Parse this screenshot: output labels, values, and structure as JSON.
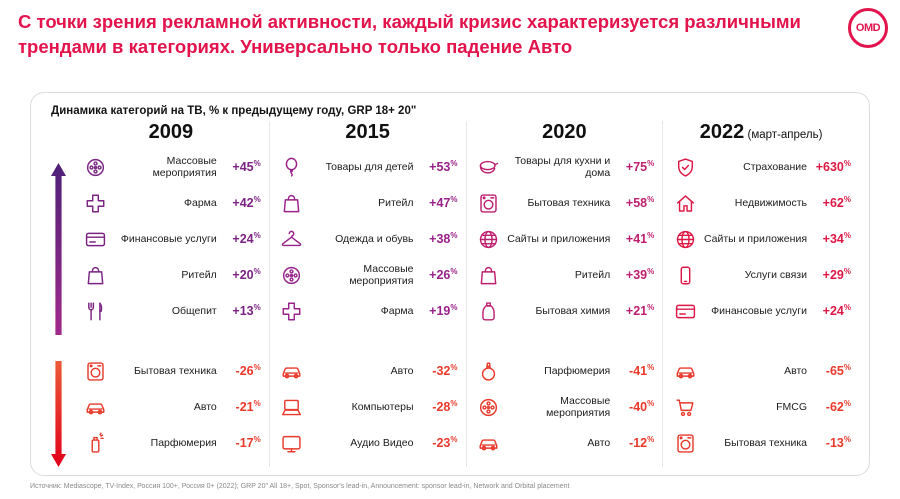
{
  "title": "С точки зрения рекламной активности, каждый кризис характеризуется различными трендами в категориях. Универсально только падение Авто",
  "logo": {
    "text": "OMD"
  },
  "colors": {
    "title": "#E3134B",
    "negative": "#E8392B",
    "up_arrow_top": "#4E2178",
    "up_arrow_bottom": "#A02A8C",
    "down_arrow_top": "#EA5A38",
    "down_arrow_bottom": "#E2001A"
  },
  "card": {
    "header": "Динамика категорий на ТВ, % к предыдущему году, GRP 18+ 20\"",
    "columns": [
      {
        "year": "2009",
        "year_suffix": "",
        "accent": "#7A2383",
        "gainers": [
          {
            "icon": "film-reel",
            "label": "Массовые мероприятия",
            "value": "+45%"
          },
          {
            "icon": "pharma-cross",
            "label": "Фарма",
            "value": "+42%"
          },
          {
            "icon": "credit-card",
            "label": "Финансовые услуги",
            "value": "+24%"
          },
          {
            "icon": "shopping-bag",
            "label": "Ритейл",
            "value": "+20%"
          },
          {
            "icon": "cutlery",
            "label": "Общепит",
            "value": "+13%"
          }
        ],
        "losers": [
          {
            "icon": "washing-machine",
            "label": "Бытовая техника",
            "value": "-26%"
          },
          {
            "icon": "car",
            "label": "Авто",
            "value": "-21%"
          },
          {
            "icon": "spray-can",
            "label": "Парфюмерия",
            "value": "-17%"
          }
        ]
      },
      {
        "year": "2015",
        "year_suffix": "",
        "accent": "#99218A",
        "gainers": [
          {
            "icon": "balloon",
            "label": "Товары для детей",
            "value": "+53%"
          },
          {
            "icon": "shopping-bag",
            "label": "Ритейл",
            "value": "+47%"
          },
          {
            "icon": "hanger",
            "label": "Одежда и обувь",
            "value": "+38%"
          },
          {
            "icon": "film-reel",
            "label": "Массовые мероприятия",
            "value": "+26%"
          },
          {
            "icon": "pharma-cross",
            "label": "Фарма",
            "value": "+19%"
          }
        ],
        "losers": [
          {
            "icon": "car",
            "label": "Авто",
            "value": "-32%"
          },
          {
            "icon": "laptop",
            "label": "Компьютеры",
            "value": "-28%"
          },
          {
            "icon": "tv",
            "label": "Аудио Видео",
            "value": "-23%"
          }
        ]
      },
      {
        "year": "2020",
        "year_suffix": "",
        "accent": "#BE1E6F",
        "gainers": [
          {
            "icon": "cookware",
            "label": "Товары для кухни и дома",
            "value": "+75%"
          },
          {
            "icon": "washing-machine",
            "label": "Бытовая техника",
            "value": "+58%"
          },
          {
            "icon": "globe",
            "label": "Сайты и приложения",
            "value": "+41%"
          },
          {
            "icon": "shopping-bag",
            "label": "Ритейл",
            "value": "+39%"
          },
          {
            "icon": "detergent",
            "label": "Бытовая химия",
            "value": "+21%"
          }
        ],
        "losers": [
          {
            "icon": "perfume",
            "label": "Парфюмерия",
            "value": "-41%"
          },
          {
            "icon": "film-reel",
            "label": "Массовые мероприятия",
            "value": "-40%"
          },
          {
            "icon": "car",
            "label": "Авто",
            "value": "-12%"
          }
        ]
      },
      {
        "year": "2022",
        "year_suffix": "(март-апрель)",
        "accent": "#DE1845",
        "gainers": [
          {
            "icon": "shield-check",
            "label": "Страхование",
            "value": "+630%"
          },
          {
            "icon": "house",
            "label": "Недвижимость",
            "value": "+62%"
          },
          {
            "icon": "globe",
            "label": "Сайты и приложения",
            "value": "+34%"
          },
          {
            "icon": "mobile-phone",
            "label": "Услуги связи",
            "value": "+29%"
          },
          {
            "icon": "credit-card",
            "label": "Финансовые услуги",
            "value": "+24%"
          }
        ],
        "losers": [
          {
            "icon": "car",
            "label": "Авто",
            "value": "-65%"
          },
          {
            "icon": "shopping-cart",
            "label": "FMCG",
            "value": "-62%"
          },
          {
            "icon": "washing-machine",
            "label": "Бытовая техника",
            "value": "-13%"
          }
        ]
      }
    ]
  },
  "source": "Источник: Mediascope, TV-Index, Россия 100+, Россия 0+ (2022); GRP 20\" All 18+, Spot, Sponsor's lead-in, Announcement: sponsor lead-in, Network and Orbital placement",
  "chart_data": {
    "type": "table",
    "title": "Динамика категорий на ТВ, % к предыдущему году, GRP 18+ 20\"",
    "unit": "% к предыдущему году",
    "groups": [
      {
        "year": "2009",
        "rising": [
          [
            "Массовые мероприятия",
            45
          ],
          [
            "Фарма",
            42
          ],
          [
            "Финансовые услуги",
            24
          ],
          [
            "Ритейл",
            20
          ],
          [
            "Общепит",
            13
          ]
        ],
        "falling": [
          [
            "Бытовая техника",
            -26
          ],
          [
            "Авто",
            -21
          ],
          [
            "Парфюмерия",
            -17
          ]
        ]
      },
      {
        "year": "2015",
        "rising": [
          [
            "Товары для детей",
            53
          ],
          [
            "Ритейл",
            47
          ],
          [
            "Одежда и обувь",
            38
          ],
          [
            "Массовые мероприятия",
            26
          ],
          [
            "Фарма",
            19
          ]
        ],
        "falling": [
          [
            "Авто",
            -32
          ],
          [
            "Компьютеры",
            -28
          ],
          [
            "Аудио Видео",
            -23
          ]
        ]
      },
      {
        "year": "2020",
        "rising": [
          [
            "Товары для кухни и дома",
            75
          ],
          [
            "Бытовая техника",
            58
          ],
          [
            "Сайты и приложения",
            41
          ],
          [
            "Ритейл",
            39
          ],
          [
            "Бытовая химия",
            21
          ]
        ],
        "falling": [
          [
            "Парфюмерия",
            -41
          ],
          [
            "Массовые мероприятия",
            -40
          ],
          [
            "Авто",
            -12
          ]
        ]
      },
      {
        "year": "2022 (март-апрель)",
        "rising": [
          [
            "Страхование",
            630
          ],
          [
            "Недвижимость",
            62
          ],
          [
            "Сайты и приложения",
            34
          ],
          [
            "Услуги связи",
            29
          ],
          [
            "Финансовые услуги",
            24
          ]
        ],
        "falling": [
          [
            "Авто",
            -65
          ],
          [
            "FMCG",
            -62
          ],
          [
            "Бытовая техника",
            -13
          ]
        ]
      }
    ]
  }
}
